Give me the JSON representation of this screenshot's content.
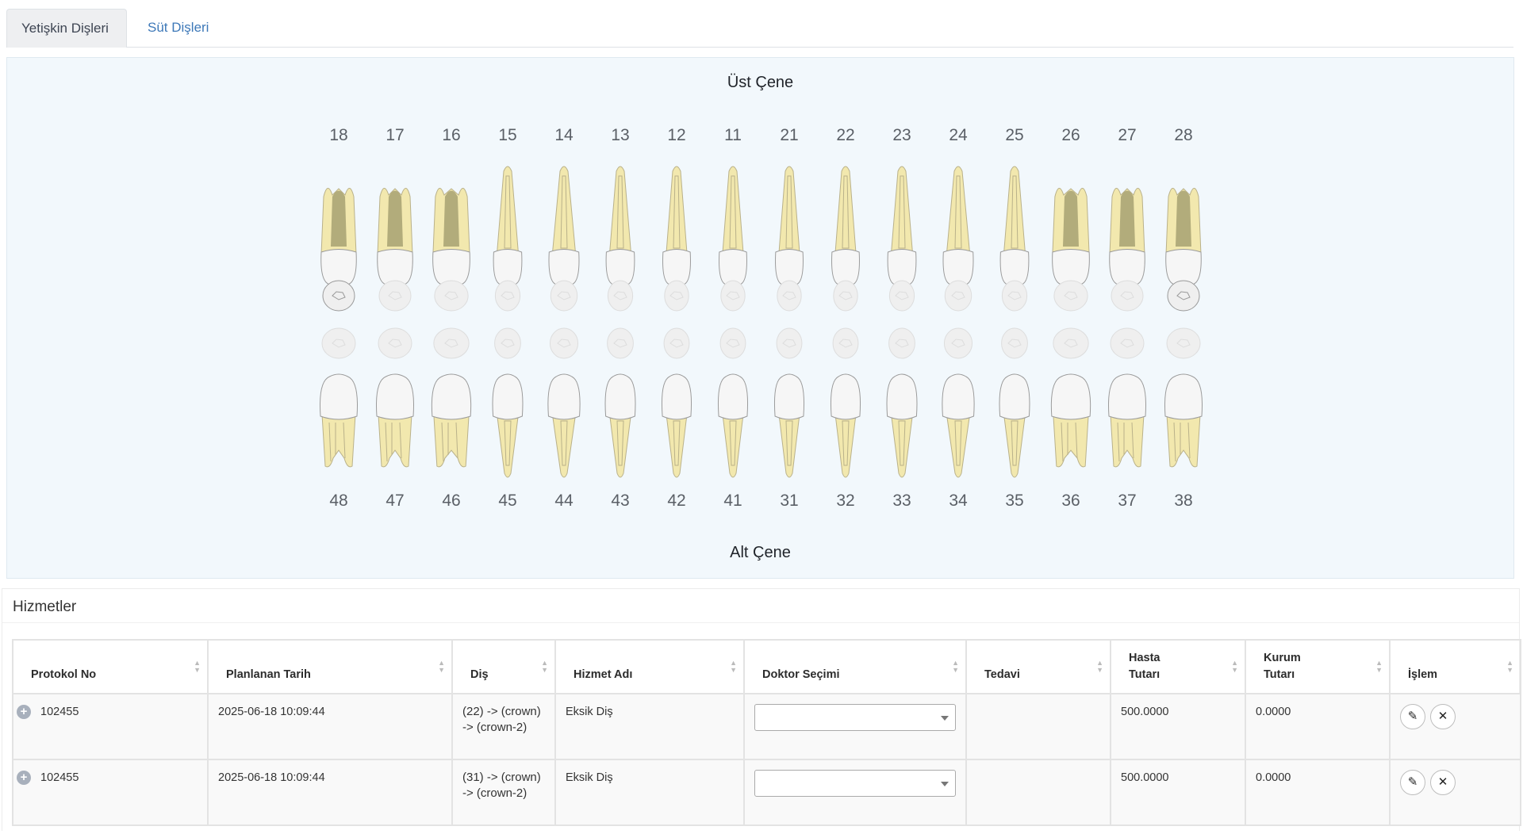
{
  "tabs": [
    {
      "label": "Yetişkin Dişleri",
      "active": true
    },
    {
      "label": "Süt Dişleri",
      "active": false
    }
  ],
  "chart": {
    "upper_title": "Üst Çene",
    "lower_title": "Alt Çene",
    "upper_teeth": [
      "18",
      "17",
      "16",
      "15",
      "14",
      "13",
      "12",
      "11",
      "21",
      "22",
      "23",
      "24",
      "25",
      "26",
      "27",
      "28"
    ],
    "lower_teeth": [
      "48",
      "47",
      "46",
      "45",
      "44",
      "43",
      "42",
      "41",
      "31",
      "32",
      "33",
      "34",
      "35",
      "36",
      "37",
      "38"
    ]
  },
  "services": {
    "title": "Hizmetler",
    "columns": [
      {
        "label": "Protokol No"
      },
      {
        "label": "Planlanan Tarih"
      },
      {
        "label": "Diş"
      },
      {
        "label": "Hizmet Adı"
      },
      {
        "label": "Doktor Seçimi"
      },
      {
        "label": "Tedavi"
      },
      {
        "label": "Hasta Tutarı"
      },
      {
        "label": "Kurum Tutarı"
      },
      {
        "label": "İşlem"
      }
    ],
    "rows": [
      {
        "protocol": "102455",
        "date": "2025-06-18 10:09:44",
        "tooth": "(22) -> (crown) -> (crown-2)",
        "service": "Eksik Diş",
        "doctor": "",
        "treatment": "",
        "patient_amount": "500.0000",
        "institution_amount": "0.0000"
      },
      {
        "protocol": "102455",
        "date": "2025-06-18 10:09:44",
        "tooth": "(31) -> (crown) -> (crown-2)",
        "service": "Eksik Diş",
        "doctor": "",
        "treatment": "",
        "patient_amount": "500.0000",
        "institution_amount": "0.0000"
      }
    ]
  },
  "colors": {
    "root_fill": "#f2e8ae",
    "root_stroke": "#b9b18a",
    "crown_fill": "#f6f6f6",
    "crown_stroke": "#9a9a9a",
    "pulp_dark": "#a7a172",
    "occlusal_fill": "#efefef",
    "panel_bg": "#f2f8fc",
    "link_blue": "#3d78b8"
  }
}
